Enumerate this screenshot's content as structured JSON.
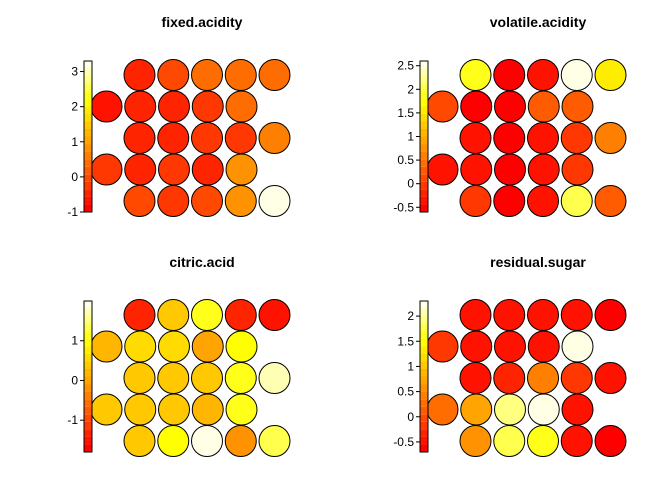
{
  "chart_data": [
    {
      "type": "heatmap",
      "title": "fixed.acidity",
      "layout": "hexagonal",
      "grid": {
        "cols": 5,
        "rows": 5
      },
      "colorscale": "heat",
      "ylim": [
        -1.0,
        3.3
      ],
      "ticks": [
        -1,
        0,
        1,
        2,
        3
      ],
      "tick_labels": [
        "-1",
        "0",
        "1",
        "2",
        "3"
      ],
      "values": [
        [
          -0.4,
          -0.1,
          0.4,
          0.3,
          0.3
        ],
        [
          -0.6,
          -0.4,
          -0.4,
          -0.3,
          0.3
        ],
        [
          -0.5,
          -0.5,
          -0.3,
          -0.2,
          0.6
        ],
        [
          -0.3,
          -0.4,
          -0.3,
          -0.4,
          0.8
        ],
        [
          -0.1,
          -0.2,
          -0.1,
          0.8,
          3.3
        ]
      ]
    },
    {
      "type": "heatmap",
      "title": "volatile.acidity",
      "layout": "hexagonal",
      "grid": {
        "cols": 5,
        "rows": 5
      },
      "colorscale": "heat",
      "ylim": [
        -0.6,
        2.6
      ],
      "ticks": [
        -0.5,
        0,
        0.5,
        1,
        1.5,
        2,
        2.5
      ],
      "tick_labels": [
        "-0.5",
        "0",
        "0.5",
        "1",
        "1.5",
        "2",
        "2.5"
      ],
      "values": [
        [
          1.9,
          -0.5,
          -0.4,
          2.6,
          1.6
        ],
        [
          0.1,
          -0.5,
          -0.5,
          0.2,
          0.2
        ],
        [
          -0.4,
          -0.6,
          -0.4,
          0.0,
          0.6
        ],
        [
          -0.4,
          -0.4,
          -0.5,
          -0.4,
          0.0
        ],
        [
          -0.1,
          -0.6,
          -0.4,
          2.0,
          0.2
        ]
      ]
    },
    {
      "type": "heatmap",
      "title": "citric.acid",
      "layout": "hexagonal",
      "grid": {
        "cols": 5,
        "rows": 5
      },
      "colorscale": "heat",
      "ylim": [
        -1.8,
        2.0
      ],
      "ticks": [
        -1,
        0,
        1
      ],
      "tick_labels": [
        "-1",
        "0",
        "1"
      ],
      "values": [
        [
          -1.3,
          0.3,
          1.1,
          -1.4,
          -1.5
        ],
        [
          0.2,
          0.5,
          0.6,
          0.0,
          1.0
        ],
        [
          0.4,
          0.4,
          0.3,
          1.2,
          1.8
        ],
        [
          0.3,
          0.4,
          0.4,
          0.2,
          1.1
        ],
        [
          0.3,
          1.0,
          1.9,
          -0.1,
          1.4
        ]
      ]
    },
    {
      "type": "heatmap",
      "title": "residual.sugar",
      "layout": "hexagonal",
      "grid": {
        "cols": 5,
        "rows": 5
      },
      "colorscale": "heat",
      "ylim": [
        -0.7,
        2.3
      ],
      "ticks": [
        -0.5,
        0,
        0.5,
        1,
        1.5,
        2
      ],
      "tick_labels": [
        "-0.5",
        "0",
        "0.5",
        "1",
        "1.5",
        "2"
      ],
      "values": [
        [
          -0.5,
          -0.5,
          -0.4,
          -0.5,
          -0.6
        ],
        [
          -0.2,
          -0.4,
          -0.4,
          -0.5,
          2.3
        ],
        [
          -0.4,
          -0.3,
          0.5,
          -0.2,
          -0.4
        ],
        [
          0.2,
          0.7,
          1.9,
          2.2,
          -0.5
        ],
        [
          0.6,
          1.8,
          1.7,
          -0.5,
          -0.6
        ]
      ]
    }
  ]
}
